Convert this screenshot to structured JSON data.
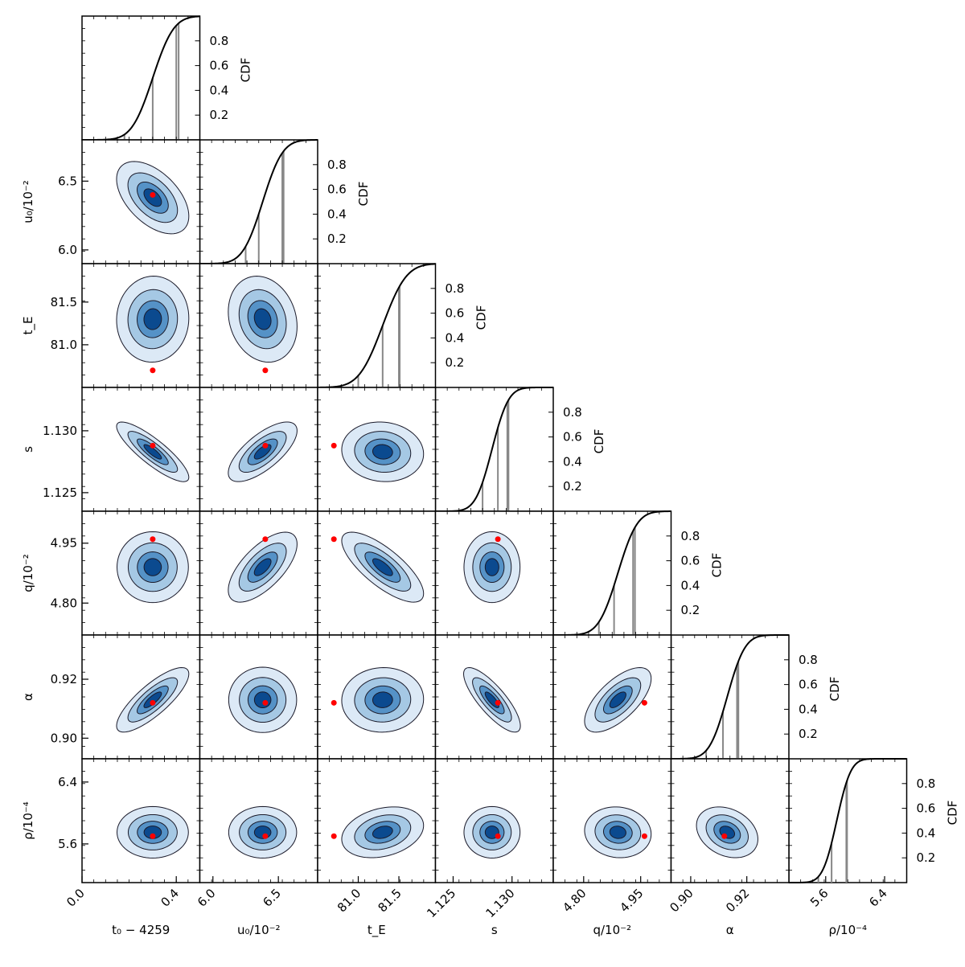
{
  "chart_data": {
    "type": "corner",
    "parameters": [
      {
        "key": "t0",
        "label": "t₀ − 4259",
        "range": [
          0.0,
          0.5
        ],
        "ticks": [
          0.0,
          0.4
        ],
        "tick_labels": [
          "0.0",
          "0.4"
        ],
        "best": 0.3,
        "mean": 0.3,
        "sigma": 0.07,
        "cdf_lines": [
          0.18,
          0.3,
          0.4,
          0.41
        ]
      },
      {
        "key": "u0",
        "label": "u₀/10⁻²",
        "range": [
          5.9,
          6.8
        ],
        "ticks": [
          6.0,
          6.5
        ],
        "tick_labels": [
          "6.0",
          "6.5"
        ],
        "best": 6.4,
        "mean": 6.38,
        "sigma": 0.12,
        "cdf_lines": [
          6.25,
          6.35,
          6.53,
          6.54
        ]
      },
      {
        "key": "tE",
        "label": "t_E",
        "range": [
          80.5,
          81.95
        ],
        "ticks": [
          81.0,
          81.5
        ],
        "tick_labels": [
          "81.0",
          "81.5"
        ],
        "best": 80.7,
        "mean": 81.3,
        "sigma": 0.23,
        "cdf_lines": [
          81.0,
          81.3,
          81.5,
          81.51
        ]
      },
      {
        "key": "s",
        "label": "s",
        "range": [
          1.1235,
          1.1335
        ],
        "ticks": [
          1.125,
          1.13
        ],
        "tick_labels": [
          "1.125",
          "1.130"
        ],
        "best": 1.1288,
        "mean": 1.1283,
        "sigma": 0.0011,
        "cdf_lines": [
          1.1275,
          1.1288,
          1.1296,
          1.1297
        ]
      },
      {
        "key": "q",
        "label": "q/10⁻²",
        "range": [
          4.72,
          5.03
        ],
        "ticks": [
          4.8,
          4.95
        ],
        "tick_labels": [
          "4.80",
          "4.95"
        ],
        "best": 4.96,
        "mean": 4.89,
        "sigma": 0.04,
        "cdf_lines": [
          4.84,
          4.88,
          4.93,
          4.935
        ]
      },
      {
        "key": "alpha",
        "label": "α",
        "range": [
          0.893,
          0.935
        ],
        "ticks": [
          0.9,
          0.92
        ],
        "tick_labels": [
          "0.90",
          "0.92"
        ],
        "best": 0.912,
        "mean": 0.913,
        "sigma": 0.005,
        "cdf_lines": [
          0.9055,
          0.9115,
          0.9165,
          0.917
        ]
      },
      {
        "key": "rho",
        "label": "ρ/10⁻⁴",
        "range": [
          5.1,
          6.7
        ],
        "ticks": [
          5.6,
          6.4
        ],
        "tick_labels": [
          "5.6",
          "6.4"
        ],
        "best": 5.7,
        "mean": 5.75,
        "sigma": 0.15,
        "cdf_lines": [
          5.5,
          5.68,
          5.88,
          5.89
        ]
      }
    ],
    "correlations": [
      [
        1.0,
        -0.55,
        0.05,
        -0.9,
        0.0,
        0.85,
        0.0
      ],
      [
        -0.55,
        1.0,
        -0.2,
        0.75,
        0.7,
        0.0,
        0.0
      ],
      [
        0.05,
        -0.2,
        1.0,
        -0.1,
        -0.8,
        0.05,
        0.3
      ],
      [
        -0.9,
        0.75,
        -0.1,
        1.0,
        0.0,
        -0.85,
        0.0
      ],
      [
        0.0,
        0.7,
        -0.8,
        0.0,
        1.0,
        0.7,
        -0.1
      ],
      [
        0.85,
        0.0,
        0.05,
        -0.85,
        0.7,
        1.0,
        -0.3
      ],
      [
        0.0,
        0.0,
        0.3,
        0.0,
        -0.1,
        -0.3,
        1.0
      ]
    ],
    "cdf_axis": {
      "label": "CDF",
      "ticks": [
        0.2,
        0.4,
        0.6,
        0.8
      ],
      "tick_labels": [
        "0.2",
        "0.4",
        "0.6",
        "0.8"
      ],
      "range": [
        0,
        1
      ]
    },
    "contour_colors": [
      "#dce9f6",
      "#a5c8e4",
      "#5592c7",
      "#0b4a8f"
    ],
    "best_fit_color": "#ff0000"
  }
}
